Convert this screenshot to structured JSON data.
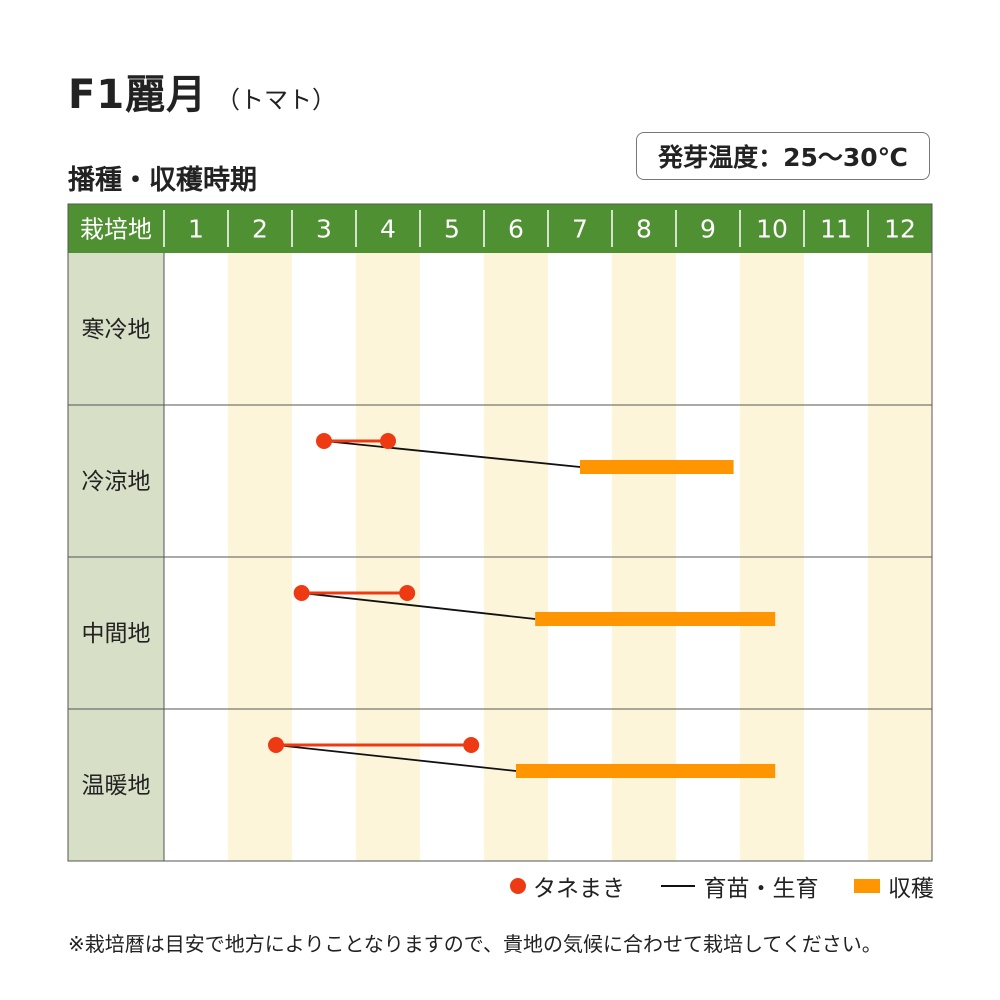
{
  "header": {
    "title": "F1麗月",
    "subtitle": "（トマト）",
    "section_title": "播種・収穫時期",
    "temperature_badge": "発芽温度：25～30℃"
  },
  "legend": {
    "sowing": "タネまき",
    "growing": "育苗・生育",
    "harvest": "収穫"
  },
  "note": "※栽培暦は目安で地方によりことなりますので、貴地の気候に合わせて栽培してください。",
  "colors": {
    "header_green": "#4f9132",
    "region_cell": "#d7dfc7",
    "stripe": "#fdf5d9",
    "sowing": "#ee3a12",
    "harvest": "#ff9500",
    "growing_line": "#111111"
  },
  "chart_data": {
    "type": "gantt",
    "header_label": "栽培地",
    "months": [
      "1",
      "2",
      "3",
      "4",
      "5",
      "6",
      "7",
      "8",
      "9",
      "10",
      "11",
      "12"
    ],
    "rows": [
      {
        "region": "寒冷地",
        "sowing": null,
        "harvest": null
      },
      {
        "region": "冷涼地",
        "sowing": [
          3.5,
          4.5
        ],
        "harvest": [
          7.5,
          9.9
        ]
      },
      {
        "region": "中間地",
        "sowing": [
          3.15,
          4.8
        ],
        "harvest": [
          6.8,
          10.55
        ]
      },
      {
        "region": "温暖地",
        "sowing": [
          2.75,
          5.8
        ],
        "harvest": [
          6.5,
          10.55
        ]
      }
    ]
  }
}
